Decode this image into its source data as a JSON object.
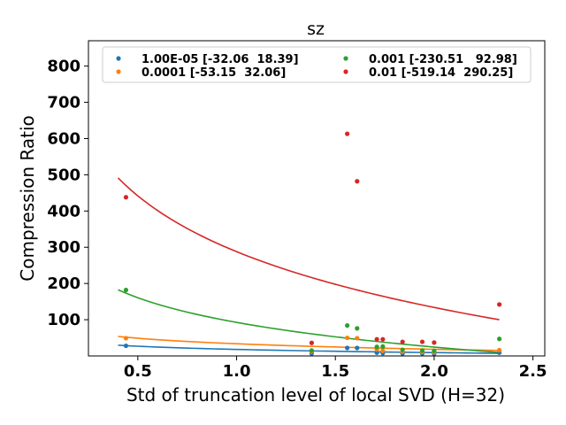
{
  "chart_data": {
    "type": "scatter",
    "title": "sz",
    "xlabel": "Std of truncation level of local SVD (H=32)",
    "ylabel": "Compression Ratio",
    "xlim": [
      0.25,
      2.56
    ],
    "ylim": [
      0,
      870
    ],
    "xticks": [
      0.5,
      1.0,
      1.5,
      2.0,
      2.5
    ],
    "xtick_labels": [
      "0.5",
      "1.0",
      "1.5",
      "2.0",
      "2.5"
    ],
    "yticks": [
      100,
      200,
      300,
      400,
      500,
      600,
      700,
      800
    ],
    "ytick_labels": [
      "100",
      "200",
      "300",
      "400",
      "500",
      "600",
      "700",
      "800"
    ],
    "grid": false,
    "legend": {
      "placement": "top",
      "columns": 2
    },
    "series": [
      {
        "name": "1.00E-05 [-32.06  18.39]",
        "color": "#1f77b4",
        "points": [
          [
            0.44,
            28
          ],
          [
            1.38,
            7
          ],
          [
            1.56,
            22
          ],
          [
            1.61,
            22
          ],
          [
            1.71,
            9
          ],
          [
            1.74,
            8
          ],
          [
            1.84,
            7
          ],
          [
            1.94,
            7
          ],
          [
            2.0,
            6
          ],
          [
            2.33,
            9
          ]
        ],
        "fit_x": [
          0.4,
          2.33
        ]
      },
      {
        "name": "0.0001 [-53.15  32.06]",
        "color": "#ff7f0e",
        "points": [
          [
            0.44,
            49
          ],
          [
            1.38,
            12
          ],
          [
            1.56,
            50
          ],
          [
            1.61,
            49
          ],
          [
            1.71,
            18
          ],
          [
            1.74,
            14
          ],
          [
            1.84,
            12
          ],
          [
            1.94,
            11
          ],
          [
            2.0,
            10
          ],
          [
            2.33,
            16
          ]
        ],
        "fit_x": [
          0.4,
          2.33
        ]
      },
      {
        "name": "0.001 [-230.51   92.98]",
        "color": "#2ca02c",
        "points": [
          [
            0.44,
            182
          ],
          [
            1.38,
            15
          ],
          [
            1.56,
            84
          ],
          [
            1.61,
            76
          ],
          [
            1.71,
            25
          ],
          [
            1.74,
            26
          ],
          [
            1.84,
            17
          ],
          [
            1.94,
            15
          ],
          [
            2.0,
            14
          ],
          [
            2.33,
            47
          ]
        ],
        "fit_x": [
          0.4,
          2.33
        ]
      },
      {
        "name": "0.01 [-519.14  290.25]",
        "color": "#d62728",
        "points": [
          [
            0.44,
            438
          ],
          [
            1.38,
            36
          ],
          [
            1.56,
            613
          ],
          [
            1.61,
            482
          ],
          [
            1.71,
            46
          ],
          [
            1.74,
            46
          ],
          [
            1.84,
            39
          ],
          [
            1.94,
            39
          ],
          [
            2.0,
            37
          ],
          [
            2.33,
            142
          ]
        ],
        "fit_x": [
          0.4,
          2.33
        ]
      }
    ]
  }
}
